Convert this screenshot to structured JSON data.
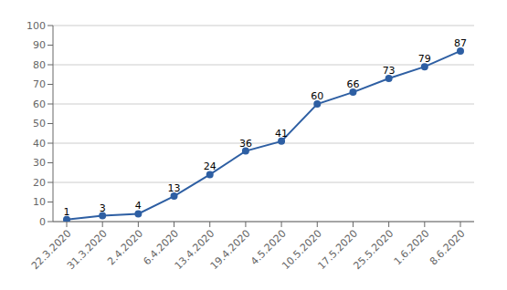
{
  "chart_data": {
    "type": "line",
    "categories": [
      "22.3.2020",
      "31.3.2020",
      "2.4.2020",
      "6.4.2020",
      "13.4.2020",
      "19.4.2020",
      "4.5.2020",
      "10.5.2020",
      "17.5.2020",
      "25.5.2020",
      "1.6.2020",
      "8.6.2020"
    ],
    "values": [
      1,
      3,
      4,
      13,
      24,
      36,
      41,
      60,
      66,
      73,
      79,
      87
    ],
    "color": "#2E5FA3",
    "ylim": [
      0,
      100
    ],
    "yticks": [
      0,
      10,
      20,
      30,
      40,
      50,
      60,
      70,
      80,
      90,
      100
    ],
    "grid": true,
    "data_labels": true,
    "marker": "circle"
  }
}
